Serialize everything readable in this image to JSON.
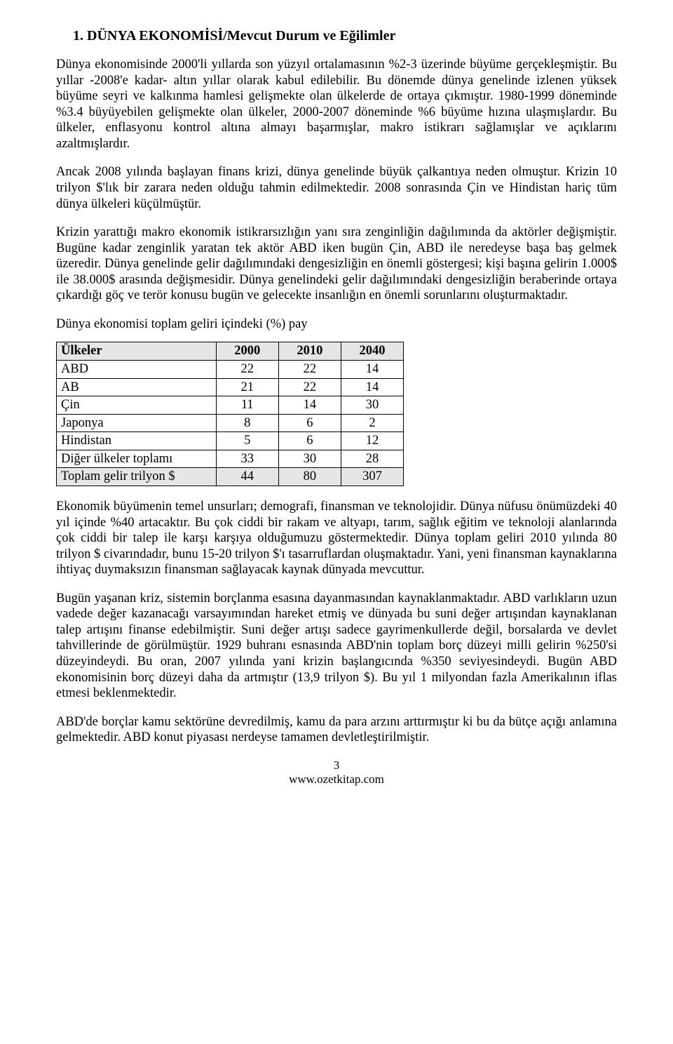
{
  "heading": "1.  DÜNYA EKONOMİSİ/Mevcut Durum ve Eğilimler",
  "paragraphs": {
    "p1": "Dünya ekonomisinde 2000'li yıllarda son yüzyıl ortalamasının %2-3 üzerinde büyüme gerçekleşmiştir. Bu yıllar -2008'e kadar- altın yıllar olarak kabul edilebilir. Bu dönemde dünya genelinde izlenen yüksek büyüme seyri ve kalkınma hamlesi gelişmekte olan ülkelerde de ortaya çıkmıştır. 1980-1999 döneminde %3.4 büyüyebilen gelişmekte olan ülkeler, 2000-2007 döneminde %6 büyüme hızına ulaşmışlardır. Bu ülkeler, enflasyonu kontrol altına almayı başarmışlar, makro istikrarı sağlamışlar ve açıklarını azaltmışlardır.",
    "p2": "Ancak 2008 yılında başlayan finans krizi, dünya genelinde büyük çalkantıya neden olmuştur. Krizin 10 trilyon $'lık bir zarara neden olduğu tahmin edilmektedir.  2008 sonrasında Çin ve Hindistan hariç tüm dünya ülkeleri küçülmüştür.",
    "p3": "Krizin yarattığı makro ekonomik istikrarsızlığın yanı sıra zenginliğin dağılımında da aktörler değişmiştir. Bugüne kadar zenginlik yaratan tek aktör ABD iken bugün Çin, ABD ile neredeyse başa baş gelmek üzeredir. Dünya genelinde gelir dağılımındaki dengesizliğin en önemli göstergesi; kişi başına gelirin 1.000$ ile 38.000$ arasında değişmesidir. Dünya genelindeki gelir dağılımındaki dengesizliğin beraberinde ortaya çıkardığı göç ve terör konusu bugün ve gelecekte insanlığın en önemli sorunlarını oluşturmaktadır.",
    "p4": "Dünya ekonomisi toplam geliri içindeki (%) pay",
    "p5": "Ekonomik büyümenin temel unsurları; demografi, finansman ve teknolojidir. Dünya nüfusu önümüzdeki 40 yıl içinde %40 artacaktır. Bu çok ciddi bir rakam ve altyapı, tarım, sağlık eğitim ve teknoloji alanlarında çok ciddi bir talep ile karşı karşıya olduğumuzu göstermektedir. Dünya toplam geliri 2010 yılında 80 trilyon $ civarındadır, bunu 15-20 trilyon $'ı tasarruflardan oluşmaktadır. Yani, yeni finansman kaynaklarına ihtiyaç duymaksızın finansman sağlayacak kaynak dünyada mevcuttur.",
    "p6": "Bugün yaşanan kriz, sistemin borçlanma esasına dayanmasından kaynaklanmaktadır. ABD varlıkların uzun vadede değer kazanacağı varsayımından hareket etmiş ve dünyada bu suni değer artışından kaynaklanan talep artışını finanse edebilmiştir.  Suni değer artışı sadece gayrimenkullerde değil, borsalarda ve devlet tahvillerinde de görülmüştür. 1929 buhranı esnasında ABD'nin toplam borç düzeyi milli gelirin %250'si düzeyindeydi. Bu oran, 2007 yılında yani krizin başlangıcında %350 seviyesindeydi. Bugün ABD ekonomisinin borç düzeyi daha da artmıştır (13,9 trilyon $). Bu yıl 1 milyondan fazla Amerikalının iflas etmesi beklenmektedir.",
    "p7": "ABD'de borçlar kamu sektörüne devredilmiş, kamu da para arzını arttırmıştır ki bu da bütçe açığı anlamına gelmektedir. ABD konut piyasası nerdeyse tamamen devletleştirilmiştir."
  },
  "table": {
    "header": {
      "c0": "Ülkeler",
      "c1": "2000",
      "c2": "2010",
      "c3": "2040"
    },
    "rows": [
      {
        "c0": "ABD",
        "c1": "22",
        "c2": "22",
        "c3": "14"
      },
      {
        "c0": "AB",
        "c1": "21",
        "c2": "22",
        "c3": "14"
      },
      {
        "c0": "Çin",
        "c1": "11",
        "c2": "14",
        "c3": "30"
      },
      {
        "c0": "Japonya",
        "c1": "8",
        "c2": "6",
        "c3": "2"
      },
      {
        "c0": "Hindistan",
        "c1": "5",
        "c2": "6",
        "c3": "12"
      },
      {
        "c0": "Diğer ülkeler toplamı",
        "c1": "33",
        "c2": "30",
        "c3": "28"
      },
      {
        "c0": "Toplam gelir trilyon $",
        "c1": "44",
        "c2": "80",
        "c3": "307"
      }
    ],
    "col_widths": [
      "46%",
      "18%",
      "18%",
      "18%"
    ],
    "shade_color": "#e6e6e6"
  },
  "footer": {
    "page_number": "3",
    "url": "www.ozetkitap.com"
  },
  "style": {
    "font_family": "Times New Roman",
    "body_fontsize_pt": 14,
    "heading_fontsize_pt": 15,
    "background": "#ffffff",
    "text_color": "#000000",
    "border_color": "#000000"
  }
}
